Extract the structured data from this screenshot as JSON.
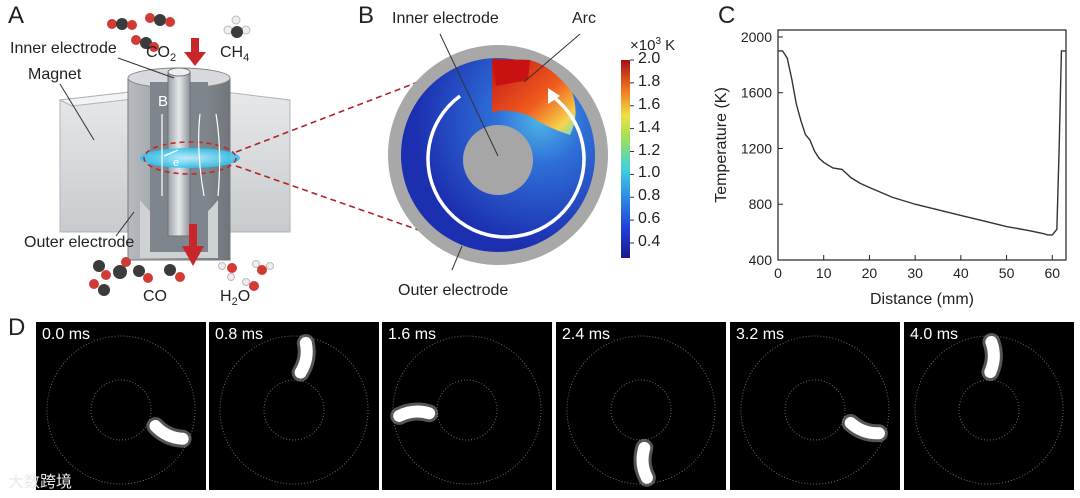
{
  "panel_a": {
    "letter": "A",
    "labels": {
      "inner_electrode": "Inner electrode",
      "magnet": "Magnet",
      "outer_electrode": "Outer electrode",
      "co2": "CO",
      "co2_sub": "2",
      "ch4": "CH",
      "ch4_sub": "4",
      "co": "CO",
      "h2o_h": "H",
      "h2o_sub": "2",
      "h2o_o": "O",
      "b_field": "B",
      "electron": "e"
    }
  },
  "panel_b": {
    "letter": "B",
    "labels": {
      "inner_electrode": "Inner electrode",
      "arc": "Arc",
      "outer_electrode": "Outer electrode"
    },
    "colorbar": {
      "unit_prefix": "×10",
      "unit_exp": "3",
      "unit_suffix": " K",
      "ticks": [
        "2.0",
        "1.8",
        "1.6",
        "1.4",
        "1.2",
        "1.0",
        "0.8",
        "0.6",
        "0.4"
      ]
    }
  },
  "panel_c": {
    "letter": "C",
    "chart_data": {
      "type": "line",
      "xlabel": "Distance (mm)",
      "ylabel": "Temperature (K)",
      "xlim": [
        0,
        63
      ],
      "ylim": [
        400,
        2050
      ],
      "xticks": [
        0,
        10,
        20,
        30,
        40,
        50,
        60
      ],
      "yticks": [
        400,
        800,
        1200,
        1600,
        2000
      ],
      "x": [
        0,
        1,
        2,
        3,
        4,
        5,
        6,
        7,
        8,
        9,
        10,
        12,
        14,
        16,
        18,
        20,
        25,
        30,
        35,
        40,
        45,
        50,
        55,
        58,
        59,
        60,
        61,
        61.5,
        62,
        63
      ],
      "y": [
        1900,
        1900,
        1850,
        1700,
        1520,
        1400,
        1300,
        1260,
        1180,
        1130,
        1100,
        1060,
        1050,
        990,
        950,
        920,
        850,
        800,
        760,
        720,
        680,
        640,
        610,
        590,
        580,
        580,
        620,
        1200,
        1900,
        1900
      ]
    }
  },
  "panel_d": {
    "letter": "D",
    "frames": [
      {
        "time": "0.0 ms",
        "arc_angle_deg": 25
      },
      {
        "time": "0.8 ms",
        "arc_angle_deg": -80
      },
      {
        "time": "1.6 ms",
        "arc_angle_deg": 175
      },
      {
        "time": "2.4 ms",
        "arc_angle_deg": 85
      },
      {
        "time": "3.2 ms",
        "arc_angle_deg": 20
      },
      {
        "time": "4.0 ms",
        "arc_angle_deg": -88
      }
    ]
  },
  "watermark": "大数跨境"
}
